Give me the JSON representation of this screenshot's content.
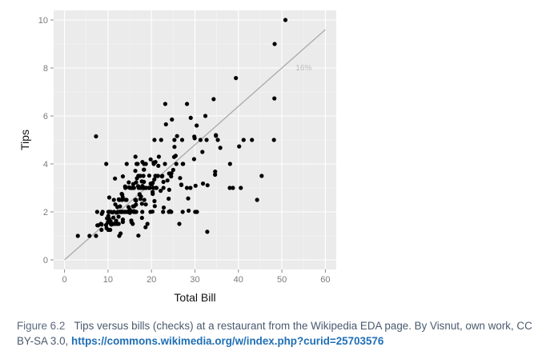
{
  "caption": {
    "figure_label": "Figure 6.2",
    "text": "Tips versus bills (checks) at a restaurant from the Wikipedia EDA page. By Visnut, own work, CC BY-SA 3.0,",
    "link": "https://commons.wikimedia.org/w/index.php?curid=25703576"
  },
  "colors": {
    "panel": "#ebebeb",
    "grid_major": "#ffffff",
    "grid_minor": "#f5f5f5",
    "points": "#000000",
    "reference_line": "#aaaaaa"
  },
  "chart_data": {
    "type": "scatter",
    "title": "",
    "xlabel": "Total Bill",
    "ylabel": "Tips",
    "xlim": [
      -2.5,
      62.5
    ],
    "ylim": [
      -0.4,
      10.4
    ],
    "x_ticks": [
      "0",
      "10",
      "20",
      "30",
      "40",
      "50",
      "60"
    ],
    "y_ticks": [
      "0",
      "2",
      "4",
      "6",
      "8",
      "10"
    ],
    "grid": true,
    "reference_line": {
      "label": "16%",
      "slope": 0.16,
      "from_x": 0,
      "to_x": 60,
      "label_x": 55,
      "label_y": 7.9
    },
    "points": [
      [
        16.99,
        1.01
      ],
      [
        10.34,
        1.66
      ],
      [
        21.01,
        3.5
      ],
      [
        23.68,
        3.31
      ],
      [
        24.59,
        3.61
      ],
      [
        25.29,
        4.71
      ],
      [
        8.77,
        2.0
      ],
      [
        26.88,
        3.12
      ],
      [
        15.04,
        1.96
      ],
      [
        14.78,
        3.23
      ],
      [
        10.27,
        1.71
      ],
      [
        35.26,
        5.0
      ],
      [
        15.42,
        1.57
      ],
      [
        18.43,
        3.0
      ],
      [
        14.83,
        3.02
      ],
      [
        21.58,
        3.92
      ],
      [
        10.33,
        1.67
      ],
      [
        16.29,
        3.71
      ],
      [
        16.97,
        3.5
      ],
      [
        20.65,
        3.35
      ],
      [
        17.92,
        4.08
      ],
      [
        20.29,
        2.75
      ],
      [
        15.77,
        2.23
      ],
      [
        39.42,
        7.58
      ],
      [
        19.82,
        3.18
      ],
      [
        17.81,
        2.34
      ],
      [
        13.37,
        2.0
      ],
      [
        12.69,
        2.0
      ],
      [
        21.7,
        4.3
      ],
      [
        19.65,
        3.0
      ],
      [
        9.55,
        1.45
      ],
      [
        18.35,
        2.5
      ],
      [
        15.06,
        3.0
      ],
      [
        20.69,
        2.45
      ],
      [
        17.78,
        3.27
      ],
      [
        24.06,
        3.6
      ],
      [
        16.31,
        2.0
      ],
      [
        16.93,
        3.07
      ],
      [
        18.69,
        2.31
      ],
      [
        31.27,
        5.0
      ],
      [
        16.04,
        2.24
      ],
      [
        17.46,
        2.54
      ],
      [
        13.94,
        3.06
      ],
      [
        9.68,
        1.32
      ],
      [
        30.4,
        5.6
      ],
      [
        18.29,
        3.0
      ],
      [
        22.23,
        5.0
      ],
      [
        32.4,
        6.0
      ],
      [
        28.55,
        2.05
      ],
      [
        18.04,
        3.0
      ],
      [
        12.54,
        2.5
      ],
      [
        10.29,
        2.6
      ],
      [
        34.81,
        5.2
      ],
      [
        9.94,
        1.56
      ],
      [
        25.56,
        4.34
      ],
      [
        19.49,
        3.51
      ],
      [
        38.01,
        3.0
      ],
      [
        26.41,
        1.5
      ],
      [
        11.24,
        1.76
      ],
      [
        48.27,
        6.73
      ],
      [
        20.29,
        3.21
      ],
      [
        13.81,
        2.0
      ],
      [
        11.02,
        1.98
      ],
      [
        18.29,
        3.76
      ],
      [
        17.59,
        2.64
      ],
      [
        20.08,
        3.15
      ],
      [
        16.45,
        2.47
      ],
      [
        3.07,
        1.0
      ],
      [
        20.23,
        2.01
      ],
      [
        15.01,
        2.09
      ],
      [
        12.02,
        1.97
      ],
      [
        17.07,
        3.0
      ],
      [
        26.86,
        3.14
      ],
      [
        25.28,
        5.0
      ],
      [
        14.73,
        2.2
      ],
      [
        10.51,
        1.25
      ],
      [
        17.92,
        3.08
      ],
      [
        27.2,
        4.0
      ],
      [
        22.76,
        3.0
      ],
      [
        17.29,
        2.71
      ],
      [
        19.44,
        3.0
      ],
      [
        16.66,
        3.4
      ],
      [
        10.07,
        1.83
      ],
      [
        32.68,
        5.0
      ],
      [
        15.98,
        2.03
      ],
      [
        34.83,
        5.17
      ],
      [
        13.03,
        2.0
      ],
      [
        18.28,
        4.0
      ],
      [
        24.71,
        5.85
      ],
      [
        21.16,
        3.0
      ],
      [
        28.97,
        3.0
      ],
      [
        22.49,
        3.5
      ],
      [
        5.75,
        1.0
      ],
      [
        16.32,
        4.3
      ],
      [
        22.75,
        3.25
      ],
      [
        40.17,
        4.73
      ],
      [
        27.28,
        4.0
      ],
      [
        12.03,
        1.5
      ],
      [
        21.01,
        3.0
      ],
      [
        12.46,
        1.5
      ],
      [
        11.35,
        2.5
      ],
      [
        15.38,
        3.0
      ],
      [
        44.3,
        2.5
      ],
      [
        22.42,
        3.48
      ],
      [
        20.92,
        4.08
      ],
      [
        15.36,
        1.64
      ],
      [
        20.49,
        4.06
      ],
      [
        25.21,
        4.29
      ],
      [
        18.24,
        3.76
      ],
      [
        14.31,
        4.0
      ],
      [
        14.0,
        3.0
      ],
      [
        7.25,
        1.0
      ],
      [
        38.07,
        4.0
      ],
      [
        23.95,
        2.55
      ],
      [
        25.71,
        4.0
      ],
      [
        17.31,
        3.5
      ],
      [
        29.93,
        5.07
      ],
      [
        10.65,
        1.5
      ],
      [
        12.43,
        1.8
      ],
      [
        24.08,
        2.92
      ],
      [
        11.69,
        2.31
      ],
      [
        13.42,
        1.68
      ],
      [
        14.26,
        2.5
      ],
      [
        15.95,
        2.0
      ],
      [
        12.48,
        2.52
      ],
      [
        29.8,
        4.2
      ],
      [
        8.52,
        1.48
      ],
      [
        14.52,
        2.0
      ],
      [
        11.38,
        2.0
      ],
      [
        22.82,
        2.18
      ],
      [
        19.08,
        1.5
      ],
      [
        20.27,
        2.83
      ],
      [
        11.17,
        1.5
      ],
      [
        12.26,
        2.0
      ],
      [
        18.26,
        3.25
      ],
      [
        8.51,
        1.25
      ],
      [
        10.33,
        2.0
      ],
      [
        14.15,
        2.0
      ],
      [
        16.0,
        2.0
      ],
      [
        13.16,
        2.75
      ],
      [
        17.47,
        3.5
      ],
      [
        34.3,
        6.7
      ],
      [
        41.19,
        5.0
      ],
      [
        27.05,
        5.0
      ],
      [
        16.43,
        2.3
      ],
      [
        8.35,
        1.5
      ],
      [
        18.64,
        1.36
      ],
      [
        11.87,
        1.63
      ],
      [
        9.78,
        1.73
      ],
      [
        7.51,
        2.0
      ],
      [
        14.07,
        2.5
      ],
      [
        13.13,
        2.0
      ],
      [
        17.26,
        2.74
      ],
      [
        24.55,
        2.0
      ],
      [
        19.77,
        2.0
      ],
      [
        29.85,
        5.14
      ],
      [
        48.17,
        5.0
      ],
      [
        25.0,
        3.75
      ],
      [
        13.39,
        2.61
      ],
      [
        16.49,
        2.0
      ],
      [
        21.5,
        3.5
      ],
      [
        12.66,
        2.5
      ],
      [
        16.21,
        2.0
      ],
      [
        13.81,
        2.0
      ],
      [
        17.51,
        3.0
      ],
      [
        24.52,
        3.48
      ],
      [
        20.76,
        2.24
      ],
      [
        31.71,
        4.5
      ],
      [
        10.59,
        1.61
      ],
      [
        10.63,
        2.0
      ],
      [
        50.81,
        10.0
      ],
      [
        15.81,
        3.16
      ],
      [
        7.25,
        5.15
      ],
      [
        31.85,
        3.18
      ],
      [
        16.82,
        4.0
      ],
      [
        32.9,
        3.11
      ],
      [
        17.89,
        2.0
      ],
      [
        14.48,
        2.0
      ],
      [
        9.6,
        4.0
      ],
      [
        34.63,
        3.55
      ],
      [
        34.65,
        3.68
      ],
      [
        23.33,
        5.65
      ],
      [
        45.35,
        3.5
      ],
      [
        23.17,
        6.5
      ],
      [
        40.55,
        3.0
      ],
      [
        20.69,
        5.0
      ],
      [
        20.9,
        3.5
      ],
      [
        30.46,
        2.0
      ],
      [
        18.15,
        3.5
      ],
      [
        23.1,
        4.0
      ],
      [
        15.69,
        1.5
      ],
      [
        19.81,
        4.19
      ],
      [
        28.44,
        2.56
      ],
      [
        15.48,
        2.02
      ],
      [
        16.58,
        4.0
      ],
      [
        7.56,
        1.44
      ],
      [
        10.34,
        2.0
      ],
      [
        43.11,
        5.0
      ],
      [
        13.0,
        2.0
      ],
      [
        13.51,
        2.0
      ],
      [
        18.71,
        4.0
      ],
      [
        12.74,
        2.01
      ],
      [
        13.0,
        2.0
      ],
      [
        16.4,
        2.5
      ],
      [
        20.53,
        4.0
      ],
      [
        16.47,
        3.23
      ],
      [
        26.59,
        3.41
      ],
      [
        38.73,
        3.0
      ],
      [
        24.27,
        2.03
      ],
      [
        12.76,
        2.23
      ],
      [
        30.06,
        2.0
      ],
      [
        25.89,
        5.16
      ],
      [
        48.33,
        9.0
      ],
      [
        13.27,
        2.5
      ],
      [
        28.17,
        6.5
      ],
      [
        12.9,
        1.1
      ],
      [
        28.15,
        3.0
      ],
      [
        11.59,
        1.5
      ],
      [
        7.74,
        1.44
      ],
      [
        30.14,
        3.09
      ],
      [
        12.16,
        2.2
      ],
      [
        13.42,
        3.48
      ],
      [
        8.58,
        1.92
      ],
      [
        15.98,
        3.0
      ],
      [
        13.42,
        1.58
      ],
      [
        16.27,
        2.5
      ],
      [
        10.09,
        2.0
      ],
      [
        20.45,
        3.0
      ],
      [
        13.28,
        2.72
      ],
      [
        22.12,
        2.88
      ],
      [
        24.01,
        2.0
      ],
      [
        15.69,
        3.0
      ],
      [
        11.61,
        3.39
      ],
      [
        10.77,
        1.47
      ],
      [
        15.53,
        3.0
      ],
      [
        10.07,
        1.25
      ],
      [
        12.6,
        1.0
      ],
      [
        32.83,
        1.17
      ],
      [
        35.83,
        4.67
      ],
      [
        29.03,
        5.92
      ],
      [
        27.18,
        2.0
      ],
      [
        22.67,
        2.0
      ],
      [
        17.82,
        1.75
      ],
      [
        18.78,
        3.0
      ]
    ]
  }
}
